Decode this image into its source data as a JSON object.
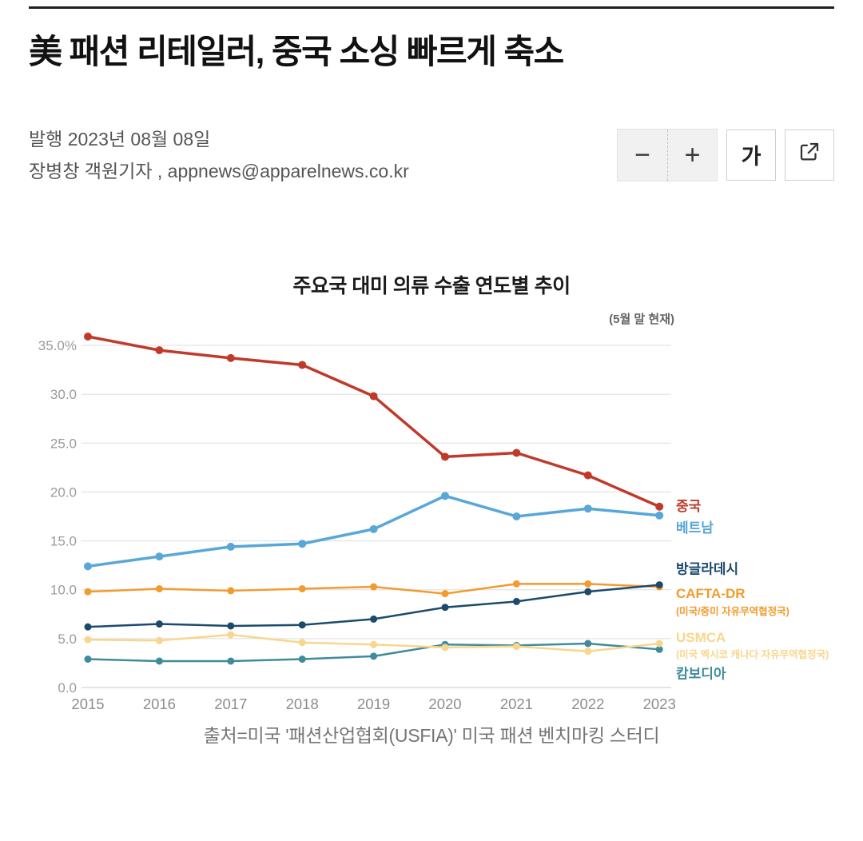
{
  "article": {
    "title": "美 패션 리테일러, 중국 소싱 빠르게 축소",
    "published": "발행 2023년 08월 08일",
    "byline": "장병창 객원기자 , appnews@apparelnews.co.kr",
    "source_caption": "출처=미국 '패션산업협회(USFIA)' 미국 패션 벤치마킹 스터디"
  },
  "toolbar": {
    "decrease_label": "−",
    "increase_label": "+",
    "textsize_label": "가",
    "share_icon": "share-arrow-icon"
  },
  "chart_data": {
    "type": "line",
    "title": "주요국 대미 의류 수출 연도별 추이",
    "note": "(5월 말 현재)",
    "x": [
      "2015",
      "2016",
      "2017",
      "2018",
      "2019",
      "2020",
      "2021",
      "2022",
      "2023"
    ],
    "ylabel": "",
    "xlabel": "",
    "ylim": [
      0,
      35
    ],
    "ytick_step": 5,
    "ytick_labels": [
      "0.0",
      "5.0",
      "10.0",
      "15.0",
      "20.0",
      "25.0",
      "30.0",
      "35.0%"
    ],
    "grid": true,
    "legend_position": "right",
    "series": [
      {
        "id": "china",
        "label": "중국",
        "color": "#bf3a2b",
        "line_width": 3.5,
        "dot_radius": 5,
        "label_dy": 5,
        "values": [
          35.9,
          34.5,
          33.7,
          33.0,
          29.8,
          23.6,
          24.0,
          21.7,
          18.5
        ]
      },
      {
        "id": "vietnam",
        "label": "베트남",
        "color": "#58a7d8",
        "line_width": 3.5,
        "dot_radius": 5,
        "label_dy": 21,
        "values": [
          12.4,
          13.4,
          14.4,
          14.7,
          16.2,
          19.6,
          17.5,
          18.3,
          17.6
        ]
      },
      {
        "id": "bangladesh",
        "label": "방글라데시",
        "color": "#1c4a6b",
        "line_width": 2.5,
        "dot_radius": 4.5,
        "label_dy": -14,
        "values": [
          6.2,
          6.5,
          6.3,
          6.4,
          7.0,
          8.2,
          8.8,
          9.8,
          10.5
        ]
      },
      {
        "id": "cafta-dr",
        "label": "CAFTA-DR",
        "sublabel": "(미국/중미 자유무역협정국)",
        "color": "#f29b2e",
        "line_width": 2.5,
        "dot_radius": 4.5,
        "label_dy": 14,
        "sublabel_dy": 35,
        "values": [
          9.8,
          10.1,
          9.9,
          10.1,
          10.3,
          9.6,
          10.6,
          10.6,
          10.3
        ]
      },
      {
        "id": "usmca",
        "label": "USMCA",
        "sublabel": "(미국 멕시코 캐나다 자유무역협정국)",
        "color": "#f8d68d",
        "line_width": 2.5,
        "dot_radius": 4.5,
        "label_dy": -2,
        "sublabel_dy": 18,
        "values": [
          4.9,
          4.8,
          5.4,
          4.6,
          4.4,
          4.1,
          4.2,
          3.7,
          4.5
        ]
      },
      {
        "id": "cambodia",
        "label": "캄보디아",
        "color": "#3f8b9b",
        "line_width": 2.5,
        "dot_radius": 4.5,
        "label_dy": 36,
        "values": [
          2.9,
          2.7,
          2.7,
          2.9,
          3.2,
          4.4,
          4.3,
          4.5,
          3.9
        ]
      }
    ]
  }
}
